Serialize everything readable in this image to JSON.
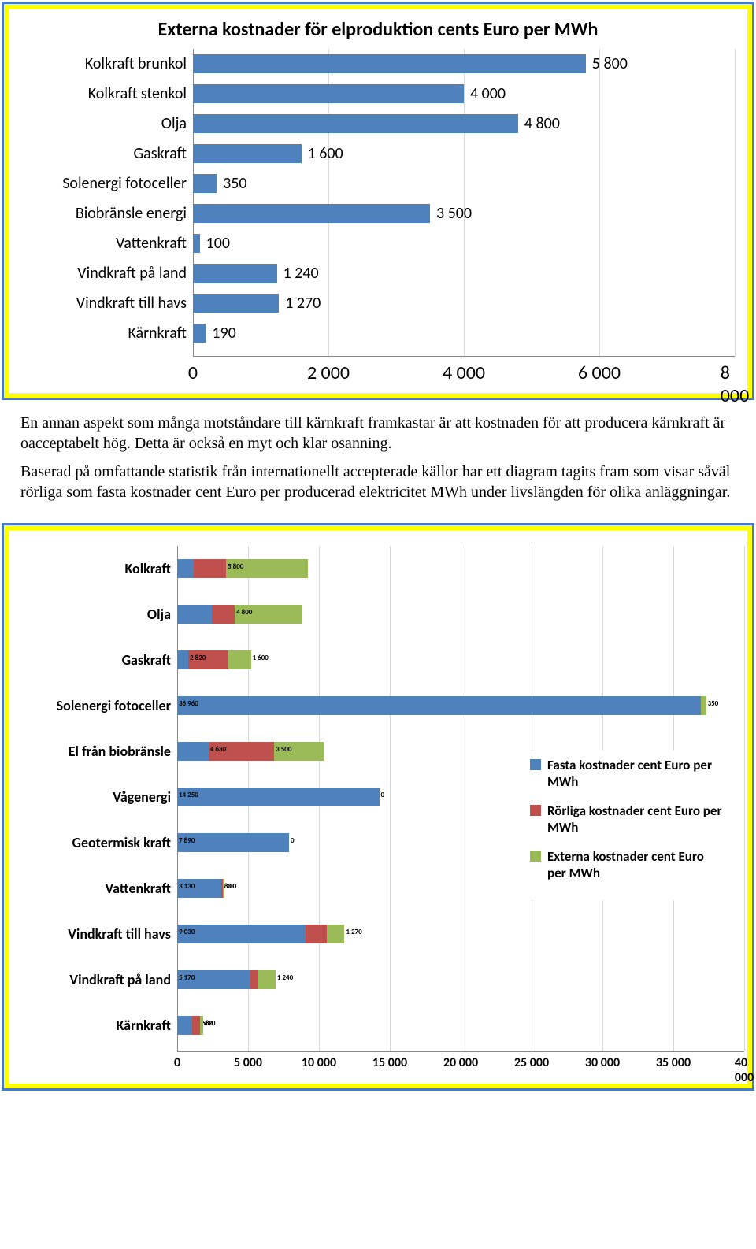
{
  "chart1": {
    "title": "Externa kostnader för elproduktion cents Euro per MWh",
    "categories": [
      "Kolkraft brunkol",
      "Kolkraft stenkol",
      "Olja",
      "Gaskraft",
      "Solenergi fotoceller",
      "Biobränsle energi",
      "Vattenkraft",
      "Vindkraft på land",
      "Vindkraft till havs",
      "Kärnkraft"
    ],
    "values": [
      5800,
      4000,
      4800,
      1600,
      350,
      3500,
      100,
      1240,
      1270,
      190
    ],
    "value_labels": [
      "5 800",
      "4 000",
      "4 800",
      "1 600",
      "350",
      "3 500",
      "100",
      "1 240",
      "1 270",
      "190"
    ],
    "bar_color": "#4f81bd",
    "xmin": 0,
    "xmax": 8000,
    "x_ticks": [
      0,
      2000,
      4000,
      6000,
      8000
    ],
    "x_tick_labels": [
      "0",
      "2 000",
      "4 000",
      "6 000",
      "8 000"
    ],
    "grid_color": "#d8d8d8",
    "background": "#ffffff",
    "frame_bg": "#ffff00",
    "frame_border": "#4a7bc0",
    "title_fontsize": 24,
    "label_fontsize": 20,
    "tick_fontsize": 24
  },
  "paragraph1": "En annan aspekt som många motståndare till kärnkraft framkastar är att kostnaden för att producera kärnkraft är oacceptabelt hög. Detta är också en myt och klar osanning.",
  "paragraph2": "Baserad på omfattande statistik från internationellt accepterade källor har ett diagram tagits fram som visar såväl rörliga som fasta kostnader cent Euro per producerad elektricitet MWh under livslängden för olika anläggningar.",
  "chart2": {
    "categories": [
      "Kolkraft",
      "Olja",
      "Gaskraft",
      "Solenergi fotoceller",
      "El från biobränsle",
      "Vågenergi",
      "Geotermisk kraft",
      "Vattenkraft",
      "Vindkraft till havs",
      "Vindkraft på land",
      "Kärnkraft"
    ],
    "series_names": [
      "Fasta kostnader cent Euro per MWh",
      "Rörliga kostnader cent Euro per MWh",
      "Externa kostnader cent Euro per MWh"
    ],
    "series_colors": [
      "#4f81bd",
      "#c0504d",
      "#9bbb59"
    ],
    "stacks": [
      {
        "vals": [
          1190,
          2260,
          5800
        ],
        "labels": [
          "1 190",
          "2 260",
          "5 800"
        ]
      },
      {
        "vals": [
          2460,
          1600,
          4800
        ],
        "labels": [
          "2 460",
          "1 600",
          "4 800"
        ]
      },
      {
        "vals": [
          780,
          2820,
          1600
        ],
        "labels": [
          "780",
          "2 820",
          "1 600"
        ]
      },
      {
        "vals": [
          36960,
          0,
          350
        ],
        "labels": [
          "36 960",
          "",
          "350"
        ]
      },
      {
        "vals": [
          2210,
          4630,
          3500
        ],
        "labels": [
          "2 210",
          "4 630",
          "3 500"
        ]
      },
      {
        "vals": [
          14250,
          0,
          0
        ],
        "labels": [
          "14 250",
          "",
          "0"
        ]
      },
      {
        "vals": [
          7890,
          0,
          0
        ],
        "labels": [
          "7 890",
          "",
          "0"
        ]
      },
      {
        "vals": [
          3130,
          80,
          100
        ],
        "labels": [
          "3 130",
          "80",
          "100"
        ]
      },
      {
        "vals": [
          9030,
          1500,
          1270
        ],
        "labels": [
          "9 030",
          "1 500",
          "1 270"
        ]
      },
      {
        "vals": [
          5170,
          530,
          1240
        ],
        "labels": [
          "5 170",
          "530",
          "1 240"
        ]
      },
      {
        "vals": [
          1050,
          580,
          190
        ],
        "labels": [
          "1 050",
          "580",
          "190"
        ]
      }
    ],
    "xmin": 0,
    "xmax": 40000,
    "x_ticks": [
      0,
      5000,
      10000,
      15000,
      20000,
      25000,
      30000,
      35000,
      40000
    ],
    "x_tick_labels": [
      "0",
      "5 000",
      "10 000",
      "15 000",
      "20 000",
      "25 000",
      "30 000",
      "35 000",
      "40 000"
    ],
    "grid_color": "#d8d8d8",
    "background": "#ffffff",
    "frame_bg": "#ffff00",
    "frame_border": "#4a7bc0",
    "label_fontsize": 18,
    "legend_fontsize": 17,
    "tick_fontsize": 16
  }
}
